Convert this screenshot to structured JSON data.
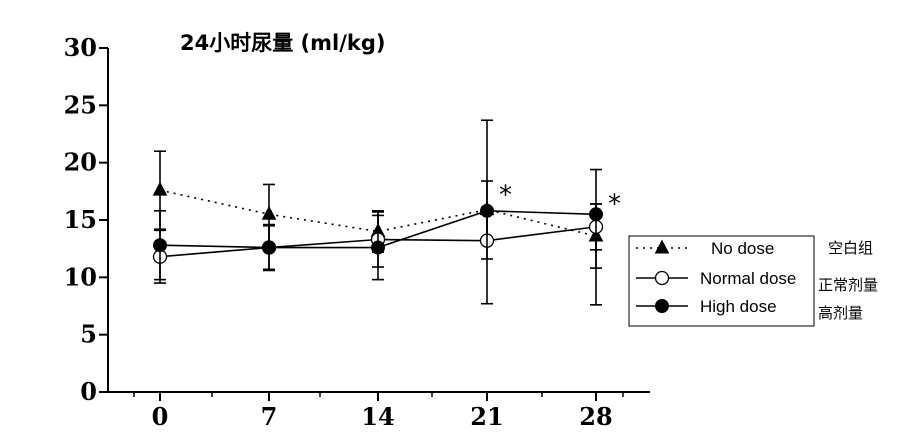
{
  "chart_data": {
    "type": "line",
    "title": "24小时尿量 (ml/kg)",
    "xlabel": "",
    "ylabel": "",
    "x": [
      0,
      7,
      14,
      21,
      28
    ],
    "x_tick_labels": [
      "0",
      "7",
      "14",
      "21",
      "28"
    ],
    "ylim": [
      0,
      30
    ],
    "y_ticks": [
      0,
      5,
      10,
      15,
      20,
      25,
      30
    ],
    "y_tick_labels": [
      "0",
      "5",
      "10",
      "15",
      "20",
      "25",
      "30"
    ],
    "grid": false,
    "legend_position": "right",
    "series": [
      {
        "name": "No dose",
        "name_cn": "空白组",
        "marker": "triangle",
        "line_style": "dotted",
        "values": [
          17.6,
          15.5,
          14.0,
          15.9,
          13.6
        ],
        "err_upper": [
          21.0,
          18.1,
          15.8,
          18.4,
          16.4
        ],
        "err_lower": [
          14.2,
          12.9,
          12.2,
          13.4,
          10.8
        ]
      },
      {
        "name": "Normal dose",
        "name_cn": "正常剂量",
        "marker": "circle-open",
        "line_style": "solid",
        "values": [
          11.8,
          12.6,
          13.3,
          13.2,
          14.4
        ],
        "err_upper": [
          14.1,
          14.6,
          15.7,
          16.0,
          16.4
        ],
        "err_lower": [
          9.5,
          10.6,
          10.9,
          11.6,
          12.4
        ]
      },
      {
        "name": "High dose",
        "name_cn": "高剂量",
        "marker": "circle-filled",
        "line_style": "solid",
        "values": [
          12.8,
          12.6,
          12.6,
          15.8,
          15.5
        ],
        "err_upper": [
          15.8,
          14.5,
          15.4,
          23.7,
          19.4
        ],
        "err_lower": [
          9.8,
          10.7,
          9.8,
          7.7,
          7.6
        ]
      }
    ],
    "annotations": [
      {
        "text": "*",
        "x": 21,
        "y": 17.5
      },
      {
        "text": "*",
        "x": 28,
        "y": 16.7
      }
    ]
  }
}
